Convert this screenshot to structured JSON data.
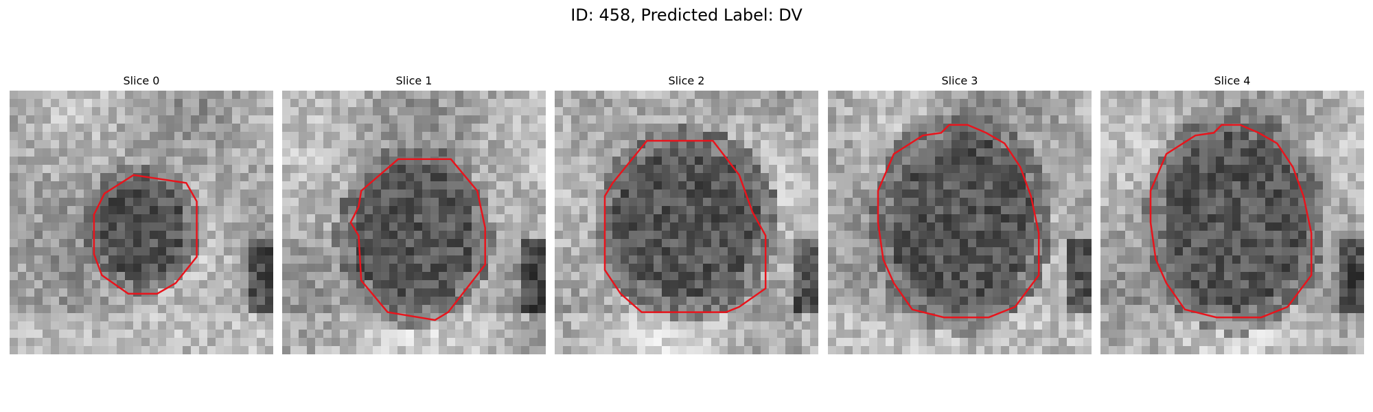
{
  "figure": {
    "title": "ID: 458, Predicted Label: DV"
  },
  "panels": [
    {
      "title": "Slice 0",
      "image": "grayscale-mri-slice",
      "contour_color": "#e8141c"
    },
    {
      "title": "Slice 1",
      "image": "grayscale-mri-slice",
      "contour_color": "#e8141c"
    },
    {
      "title": "Slice 2",
      "image": "grayscale-mri-slice",
      "contour_color": "#e8141c"
    },
    {
      "title": "Slice 3",
      "image": "grayscale-mri-slice",
      "contour_color": "#e8141c"
    },
    {
      "title": "Slice 4",
      "image": "grayscale-mri-slice",
      "contour_color": "#e8141c"
    }
  ]
}
